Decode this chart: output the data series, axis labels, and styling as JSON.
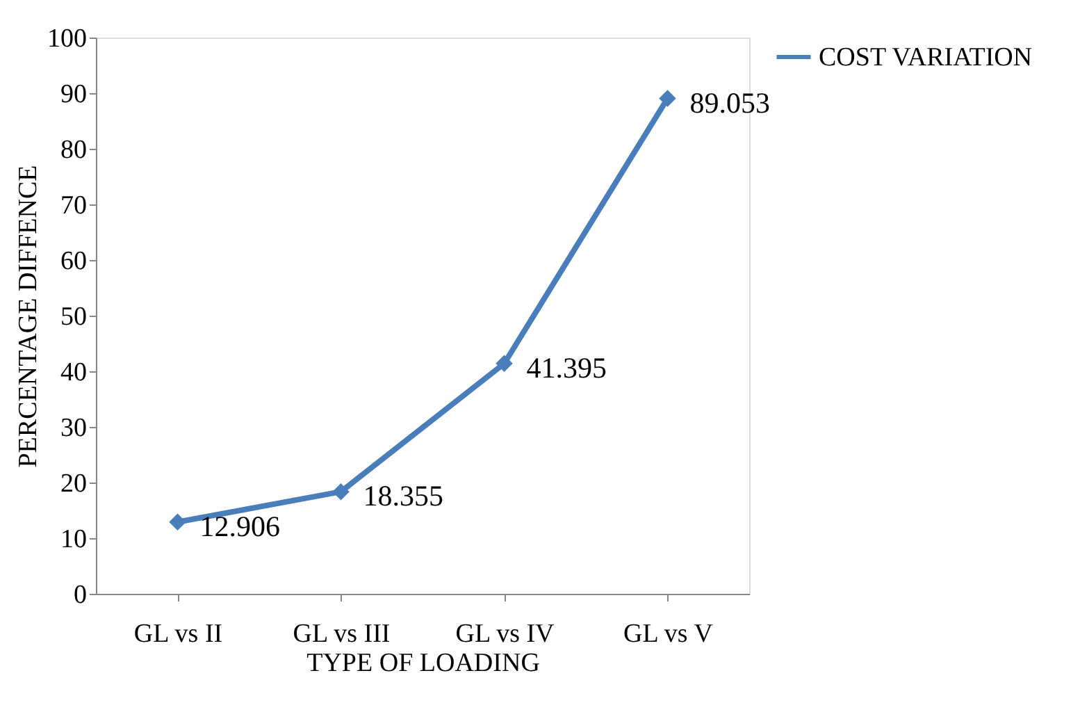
{
  "chart_data": {
    "type": "line",
    "xlabel": "TYPE OF LOADING",
    "ylabel": "PERCENTAGE DIFFENCE",
    "categories": [
      "GL vs II",
      "GL vs III",
      "GL vs IV",
      "GL vs V"
    ],
    "series": [
      {
        "name": "COST VARIATION",
        "color": "#4a7ebb",
        "values": [
          12.906,
          18.355,
          41.395,
          89.053
        ]
      }
    ],
    "ylim": [
      0,
      100
    ],
    "yticks": [
      0,
      10,
      20,
      30,
      40,
      50,
      60,
      70,
      80,
      90,
      100
    ],
    "data_labels": true,
    "legend": "right",
    "marker": "diamond",
    "line_style": "solid",
    "grid": false
  }
}
